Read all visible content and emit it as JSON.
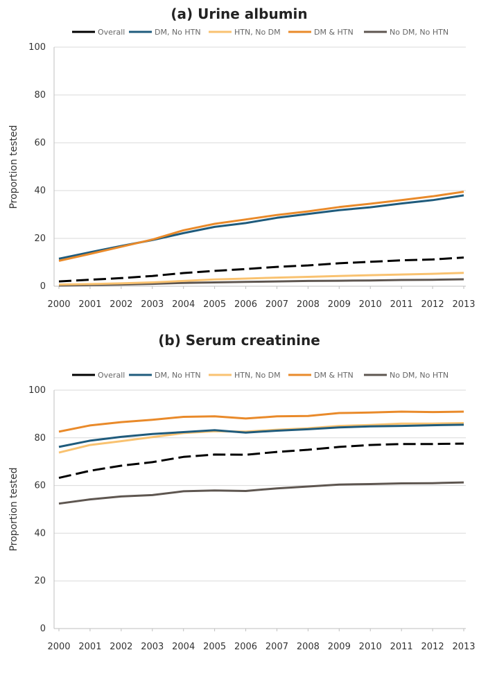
{
  "chart_data": [
    {
      "type": "line",
      "title": "(a) Urine albumin",
      "xlabel": "",
      "ylabel": "Proportion tested",
      "ylim": [
        0,
        100
      ],
      "yticks": [
        0,
        20,
        40,
        60,
        80,
        100
      ],
      "grid": "horizontal",
      "legend": "top",
      "x": [
        2000,
        2001,
        2002,
        2003,
        2004,
        2005,
        2006,
        2007,
        2008,
        2009,
        2010,
        2011,
        2012,
        2013
      ],
      "series": [
        {
          "name": "Overall",
          "color": "#000000",
          "dash": true,
          "values": [
            2.0,
            2.7,
            3.4,
            4.3,
            5.5,
            6.4,
            7.2,
            8.1,
            8.7,
            9.6,
            10.2,
            10.8,
            11.2,
            12.0
          ]
        },
        {
          "name": "DM, No HTN",
          "color": "#1f5b7c",
          "dash": false,
          "values": [
            11.5,
            14.2,
            16.8,
            19.3,
            22.2,
            24.8,
            26.4,
            28.6,
            30.2,
            31.8,
            33.0,
            34.6,
            36.0,
            38.0
          ]
        },
        {
          "name": "HTN, No DM",
          "color": "#f9c270",
          "dash": false,
          "values": [
            0.7,
            0.9,
            1.2,
            1.6,
            2.2,
            2.8,
            3.2,
            3.6,
            3.9,
            4.3,
            4.6,
            4.9,
            5.2,
            5.6
          ]
        },
        {
          "name": "DM & HTN",
          "color": "#e98a2a",
          "dash": false,
          "values": [
            10.6,
            13.5,
            16.5,
            19.5,
            23.4,
            26.1,
            27.9,
            29.8,
            31.3,
            33.1,
            34.5,
            36.0,
            37.6,
            39.5
          ]
        },
        {
          "name": "No DM, No HTN",
          "color": "#5e5650",
          "dash": false,
          "values": [
            0.3,
            0.5,
            0.7,
            1.0,
            1.4,
            1.6,
            1.8,
            2.0,
            2.2,
            2.3,
            2.4,
            2.6,
            2.7,
            2.9
          ]
        }
      ]
    },
    {
      "type": "line",
      "title": "(b) Serum creatinine",
      "xlabel": "",
      "ylabel": "Proportion tested",
      "ylim": [
        0,
        100
      ],
      "yticks": [
        0,
        20,
        40,
        60,
        80,
        100
      ],
      "grid": "horizontal",
      "legend": "top",
      "x": [
        2000,
        2001,
        2002,
        2003,
        2004,
        2005,
        2006,
        2007,
        2008,
        2009,
        2010,
        2011,
        2012,
        2013
      ],
      "series": [
        {
          "name": "Overall",
          "color": "#000000",
          "dash": true,
          "values": [
            63.2,
            66.2,
            68.3,
            69.8,
            72.0,
            73.0,
            72.9,
            74.1,
            75.0,
            76.2,
            77.0,
            77.4,
            77.4,
            77.6
          ]
        },
        {
          "name": "DM, No HTN",
          "color": "#1f5b7c",
          "dash": false,
          "values": [
            76.2,
            78.8,
            80.4,
            81.6,
            82.4,
            83.2,
            82.2,
            83.0,
            83.6,
            84.4,
            84.8,
            85.0,
            85.3,
            85.5
          ]
        },
        {
          "name": "HTN, No DM",
          "color": "#f9c270",
          "dash": false,
          "values": [
            73.8,
            77.0,
            78.6,
            80.3,
            82.0,
            82.8,
            82.6,
            83.4,
            84.0,
            85.0,
            85.4,
            86.0,
            86.0,
            86.2
          ]
        },
        {
          "name": "DM & HTN",
          "color": "#e98a2a",
          "dash": false,
          "values": [
            82.6,
            85.2,
            86.6,
            87.6,
            88.8,
            89.0,
            88.1,
            89.0,
            89.2,
            90.4,
            90.6,
            91.0,
            90.8,
            91.0
          ]
        },
        {
          "name": "No DM, No HTN",
          "color": "#5e5650",
          "dash": false,
          "values": [
            52.4,
            54.2,
            55.4,
            56.0,
            57.6,
            57.9,
            57.7,
            58.8,
            59.6,
            60.4,
            60.6,
            60.9,
            61.0,
            61.3
          ]
        }
      ]
    }
  ]
}
